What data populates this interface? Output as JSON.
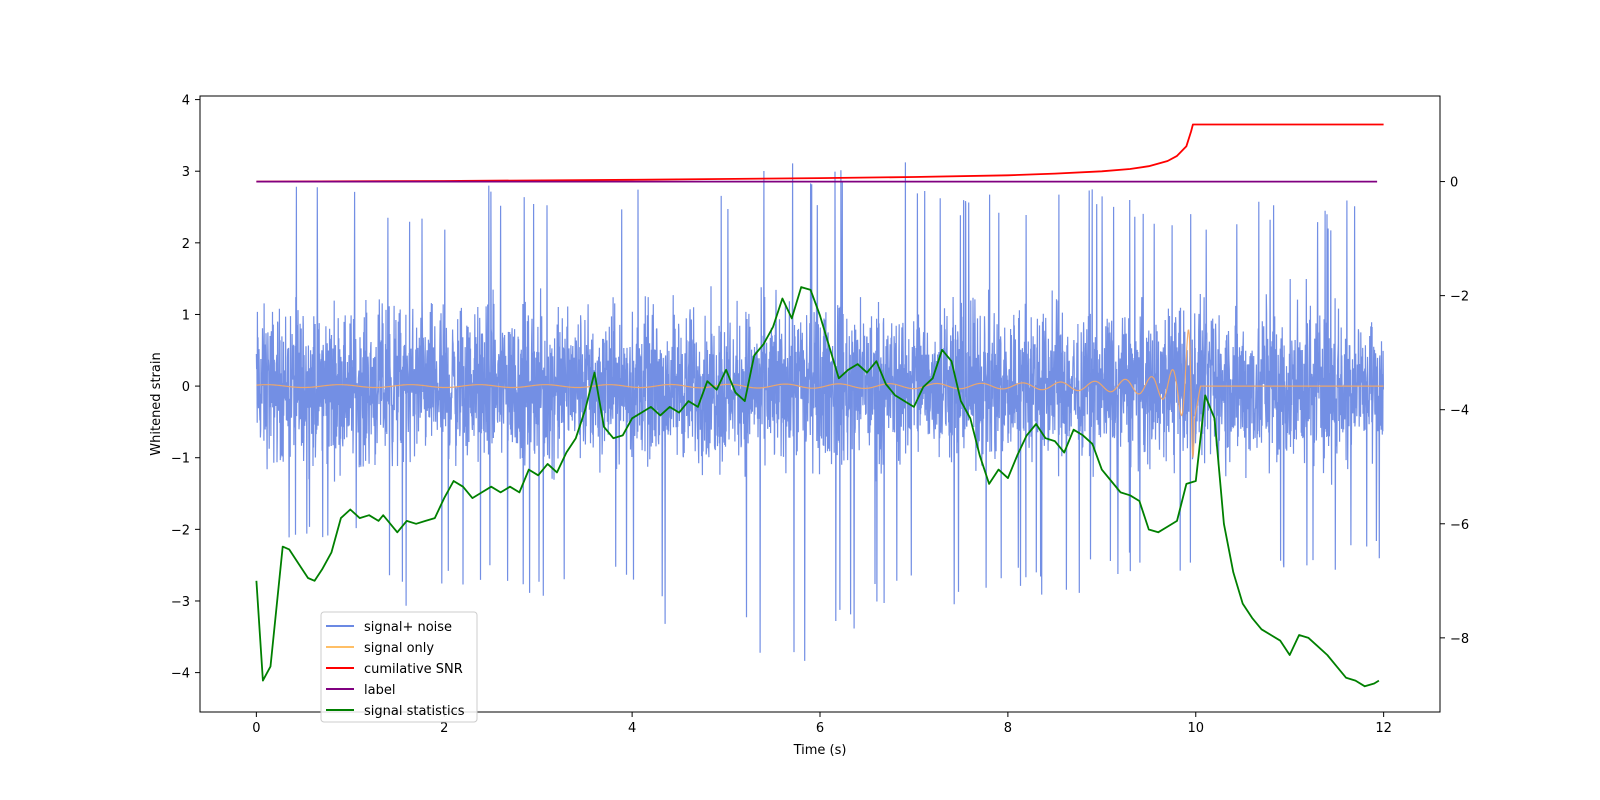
{
  "chart_data": {
    "type": "line",
    "title": "",
    "xlabel": "Time (s)",
    "ylabel": "Whitened strain",
    "y2label": "",
    "xlim": [
      -0.6,
      12.6
    ],
    "ylim": [
      -4.55,
      4.05
    ],
    "y2lim": [
      -9.3,
      1.5
    ],
    "xticks": [
      0,
      2,
      4,
      6,
      8,
      10,
      12
    ],
    "yticks": [
      -4,
      -3,
      -2,
      -1,
      0,
      1,
      2,
      3,
      4
    ],
    "y2ticks": [
      -8,
      -6,
      -4,
      -2,
      0
    ],
    "xtick_labels": [
      "0",
      "2",
      "4",
      "6",
      "8",
      "10",
      "12"
    ],
    "ytick_labels": [
      "−4",
      "−3",
      "−2",
      "−1",
      "0",
      "1",
      "2",
      "3",
      "4"
    ],
    "y2tick_labels": [
      "−8",
      "−6",
      "−4",
      "−2",
      "0"
    ],
    "grid": false,
    "legend_position": "lower-left",
    "legend": [
      {
        "label": "signal+ noise",
        "color": "#6b89e3"
      },
      {
        "label": "signal only",
        "color": "#ffbf66"
      },
      {
        "label": "cumilative SNR",
        "color": "#ff0000"
      },
      {
        "label": "label",
        "color": "#800080"
      },
      {
        "label": "signal statistics",
        "color": "#008000"
      }
    ],
    "noise_envelope": {
      "x": [
        0,
        0.5,
        1,
        1.5,
        2,
        2.5,
        3,
        3.5,
        4,
        4.5,
        5,
        5.5,
        6,
        6.5,
        7,
        7.5,
        8,
        8.5,
        9,
        9.5,
        10,
        10.5,
        11,
        11.5,
        12
      ],
      "upper": [
        2.2,
        2.9,
        2.8,
        2.7,
        2.5,
        2.9,
        2.7,
        2.8,
        2.9,
        3.5,
        2.8,
        3.6,
        2.9,
        3.6,
        3.1,
        2.8,
        2.6,
        3.0,
        2.7,
        2.6,
        2.4,
        2.6,
        2.6,
        2.5,
        3.5
      ],
      "lower": [
        -2.4,
        -2.3,
        -2.2,
        -3.2,
        -3.0,
        -2.8,
        -3.1,
        -2.8,
        -3.0,
        -3.5,
        -2.6,
        -4.2,
        -3.9,
        -3.2,
        -2.9,
        -3.2,
        -2.9,
        -3.1,
        -2.7,
        -2.6,
        -2.8,
        -2.6,
        -2.6,
        -2.7,
        -2.4
      ]
    },
    "signal_only": {
      "x": [
        0,
        2,
        4,
        6,
        8,
        9,
        9.5,
        9.8,
        9.9,
        9.96,
        10.05,
        12
      ],
      "amplitude": [
        0.02,
        0.02,
        0.02,
        0.03,
        0.04,
        0.07,
        0.12,
        0.25,
        0.6,
        1.15,
        0.0,
        0.0
      ]
    },
    "cumulative_snr": {
      "axis": "right",
      "x": [
        0,
        2,
        4,
        6,
        7,
        8,
        8.5,
        9,
        9.3,
        9.5,
        9.7,
        9.8,
        9.9,
        9.95,
        9.97,
        12
      ],
      "y": [
        0.0,
        0.01,
        0.03,
        0.06,
        0.08,
        0.11,
        0.14,
        0.18,
        0.22,
        0.27,
        0.36,
        0.45,
        0.62,
        0.88,
        1.0,
        1.0
      ]
    },
    "label": {
      "axis": "right",
      "x": [
        0,
        11.93
      ],
      "y": [
        0,
        0
      ]
    },
    "signal_statistics": {
      "axis": "right",
      "x": [
        0,
        0.07,
        0.15,
        0.28,
        0.35,
        0.45,
        0.55,
        0.62,
        0.7,
        0.8,
        0.9,
        1.0,
        1.1,
        1.2,
        1.3,
        1.35,
        1.5,
        1.6,
        1.7,
        1.8,
        1.9,
        2.0,
        2.1,
        2.2,
        2.3,
        2.4,
        2.5,
        2.6,
        2.7,
        2.8,
        2.9,
        3.0,
        3.1,
        3.2,
        3.3,
        3.4,
        3.5,
        3.6,
        3.7,
        3.8,
        3.9,
        4.0,
        4.1,
        4.2,
        4.3,
        4.4,
        4.5,
        4.6,
        4.7,
        4.8,
        4.9,
        5.0,
        5.1,
        5.2,
        5.3,
        5.4,
        5.5,
        5.6,
        5.7,
        5.8,
        5.9,
        6.0,
        6.1,
        6.2,
        6.3,
        6.4,
        6.5,
        6.6,
        6.7,
        6.8,
        6.9,
        7.0,
        7.1,
        7.2,
        7.3,
        7.4,
        7.5,
        7.6,
        7.7,
        7.8,
        7.9,
        8.0,
        8.1,
        8.2,
        8.3,
        8.4,
        8.5,
        8.6,
        8.7,
        8.8,
        8.9,
        9.0,
        9.1,
        9.2,
        9.3,
        9.4,
        9.5,
        9.6,
        9.7,
        9.8,
        9.9,
        10.0,
        10.1,
        10.2,
        10.3,
        10.4,
        10.5,
        10.6,
        10.7,
        10.8,
        10.9,
        11.0,
        11.1,
        11.2,
        11.3,
        11.4,
        11.5,
        11.6,
        11.7,
        11.8,
        11.9,
        11.95
      ],
      "y": [
        -7.0,
        -8.75,
        -8.5,
        -6.4,
        -6.45,
        -6.7,
        -6.95,
        -7.0,
        -6.8,
        -6.5,
        -5.9,
        -5.75,
        -5.9,
        -5.85,
        -5.95,
        -5.85,
        -6.15,
        -5.95,
        -6.0,
        -5.95,
        -5.9,
        -5.55,
        -5.25,
        -5.35,
        -5.55,
        -5.45,
        -5.35,
        -5.45,
        -5.35,
        -5.45,
        -5.05,
        -5.15,
        -4.95,
        -5.1,
        -4.75,
        -4.5,
        -4.0,
        -3.35,
        -4.3,
        -4.5,
        -4.45,
        -4.15,
        -4.05,
        -3.95,
        -4.1,
        -3.95,
        -4.05,
        -3.85,
        -3.95,
        -3.5,
        -3.65,
        -3.3,
        -3.7,
        -3.85,
        -3.05,
        -2.85,
        -2.55,
        -2.05,
        -2.4,
        -1.85,
        -1.9,
        -2.35,
        -2.9,
        -3.45,
        -3.3,
        -3.2,
        -3.35,
        -3.15,
        -3.55,
        -3.75,
        -3.85,
        -3.95,
        -3.6,
        -3.45,
        -2.95,
        -3.15,
        -3.85,
        -4.15,
        -4.8,
        -5.3,
        -5.05,
        -5.2,
        -4.8,
        -4.45,
        -4.25,
        -4.5,
        -4.55,
        -4.75,
        -4.35,
        -4.45,
        -4.6,
        -5.05,
        -5.25,
        -5.45,
        -5.5,
        -5.6,
        -6.1,
        -6.15,
        -6.05,
        -5.95,
        -5.3,
        -5.25,
        -3.75,
        -4.15,
        -6.0,
        -6.85,
        -7.4,
        -7.65,
        -7.85,
        -7.95,
        -8.05,
        -8.3,
        -7.95,
        -8.0,
        -8.15,
        -8.3,
        -8.5,
        -8.7,
        -8.75,
        -8.85,
        -8.8,
        -8.75
      ]
    }
  }
}
